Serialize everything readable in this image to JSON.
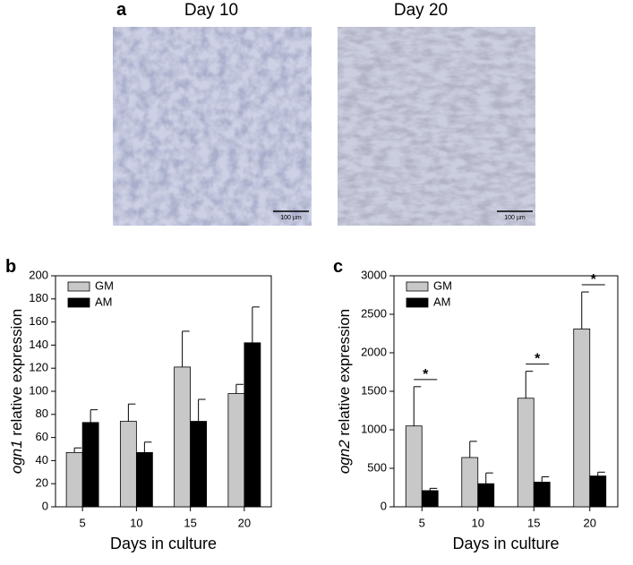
{
  "panel_labels": [
    "a",
    "b",
    "c"
  ],
  "images": [
    {
      "title": "Day 10",
      "scale_bar": "100 µm"
    },
    {
      "title": "Day 20",
      "scale_bar": "100 µm"
    }
  ],
  "chart_data": [
    {
      "type": "bar",
      "ylabel": [
        "ogn1",
        " relative expression"
      ],
      "xlabel": "Days in culture",
      "categories": [
        "5",
        "10",
        "15",
        "20"
      ],
      "series": [
        {
          "name": "GM",
          "color": "#c8c8c8",
          "values": [
            47,
            74,
            121,
            98
          ],
          "errors": [
            4,
            15,
            31,
            8
          ]
        },
        {
          "name": "AM",
          "color": "#000000",
          "values": [
            73,
            47,
            74,
            142
          ],
          "errors": [
            11,
            9,
            19,
            31
          ]
        }
      ],
      "ylim": [
        0,
        200
      ],
      "yticks": [
        0,
        20,
        40,
        60,
        80,
        100,
        120,
        140,
        160,
        180,
        200
      ],
      "legend": "upper left"
    },
    {
      "type": "bar",
      "ylabel": [
        "ogn2",
        " relative expression"
      ],
      "xlabel": "Days in culture",
      "categories": [
        "5",
        "10",
        "15",
        "20"
      ],
      "series": [
        {
          "name": "GM",
          "color": "#c8c8c8",
          "values": [
            1050,
            640,
            1410,
            2310
          ],
          "errors": [
            510,
            210,
            350,
            480
          ]
        },
        {
          "name": "AM",
          "color": "#000000",
          "values": [
            210,
            300,
            320,
            400
          ],
          "errors": [
            30,
            140,
            70,
            50
          ]
        }
      ],
      "significance": [
        "*",
        null,
        "*",
        "*"
      ],
      "ylim": [
        0,
        3000
      ],
      "yticks": [
        0,
        500,
        1000,
        1500,
        2000,
        2500,
        3000
      ],
      "legend": "upper left"
    }
  ]
}
